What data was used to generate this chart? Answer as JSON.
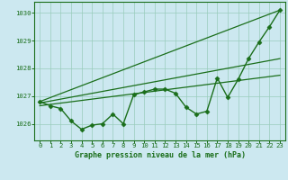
{
  "background_color": "#cce8f0",
  "grid_color": "#99ccbb",
  "line_color": "#1a6e1a",
  "border_color": "#1a6e1a",
  "title": "Graphe pression niveau de la mer (hPa)",
  "xlim": [
    -0.5,
    23.5
  ],
  "ylim": [
    1025.4,
    1030.4
  ],
  "yticks": [
    1026,
    1027,
    1028,
    1029,
    1030
  ],
  "xticks": [
    0,
    1,
    2,
    3,
    4,
    5,
    6,
    7,
    8,
    9,
    10,
    11,
    12,
    13,
    14,
    15,
    16,
    17,
    18,
    19,
    20,
    21,
    22,
    23
  ],
  "series": [
    {
      "x": [
        0,
        1,
        2,
        3,
        4,
        5,
        6,
        7,
        8,
        9,
        10,
        11,
        12,
        13,
        14,
        15,
        16,
        17,
        18,
        19,
        20,
        21,
        22,
        23
      ],
      "y": [
        1026.8,
        1026.65,
        1026.55,
        1026.1,
        1025.8,
        1025.95,
        1026.0,
        1026.35,
        1026.0,
        1027.05,
        1027.15,
        1027.25,
        1027.25,
        1027.1,
        1026.6,
        1026.35,
        1026.45,
        1027.65,
        1026.95,
        1027.6,
        1028.35,
        1028.95,
        1029.5,
        1030.1
      ],
      "marker": "D",
      "markersize": 2.5,
      "linewidth": 1.0
    },
    {
      "x": [
        0,
        23
      ],
      "y": [
        1026.8,
        1030.1
      ],
      "marker": null,
      "markersize": 0,
      "linewidth": 0.9
    },
    {
      "x": [
        0,
        23
      ],
      "y": [
        1026.75,
        1028.35
      ],
      "marker": null,
      "markersize": 0,
      "linewidth": 0.9
    },
    {
      "x": [
        0,
        23
      ],
      "y": [
        1026.65,
        1027.75
      ],
      "marker": null,
      "markersize": 0,
      "linewidth": 0.9
    }
  ],
  "title_fontsize": 6.0,
  "tick_fontsize": 5.2,
  "figsize": [
    3.2,
    2.0
  ],
  "dpi": 100
}
